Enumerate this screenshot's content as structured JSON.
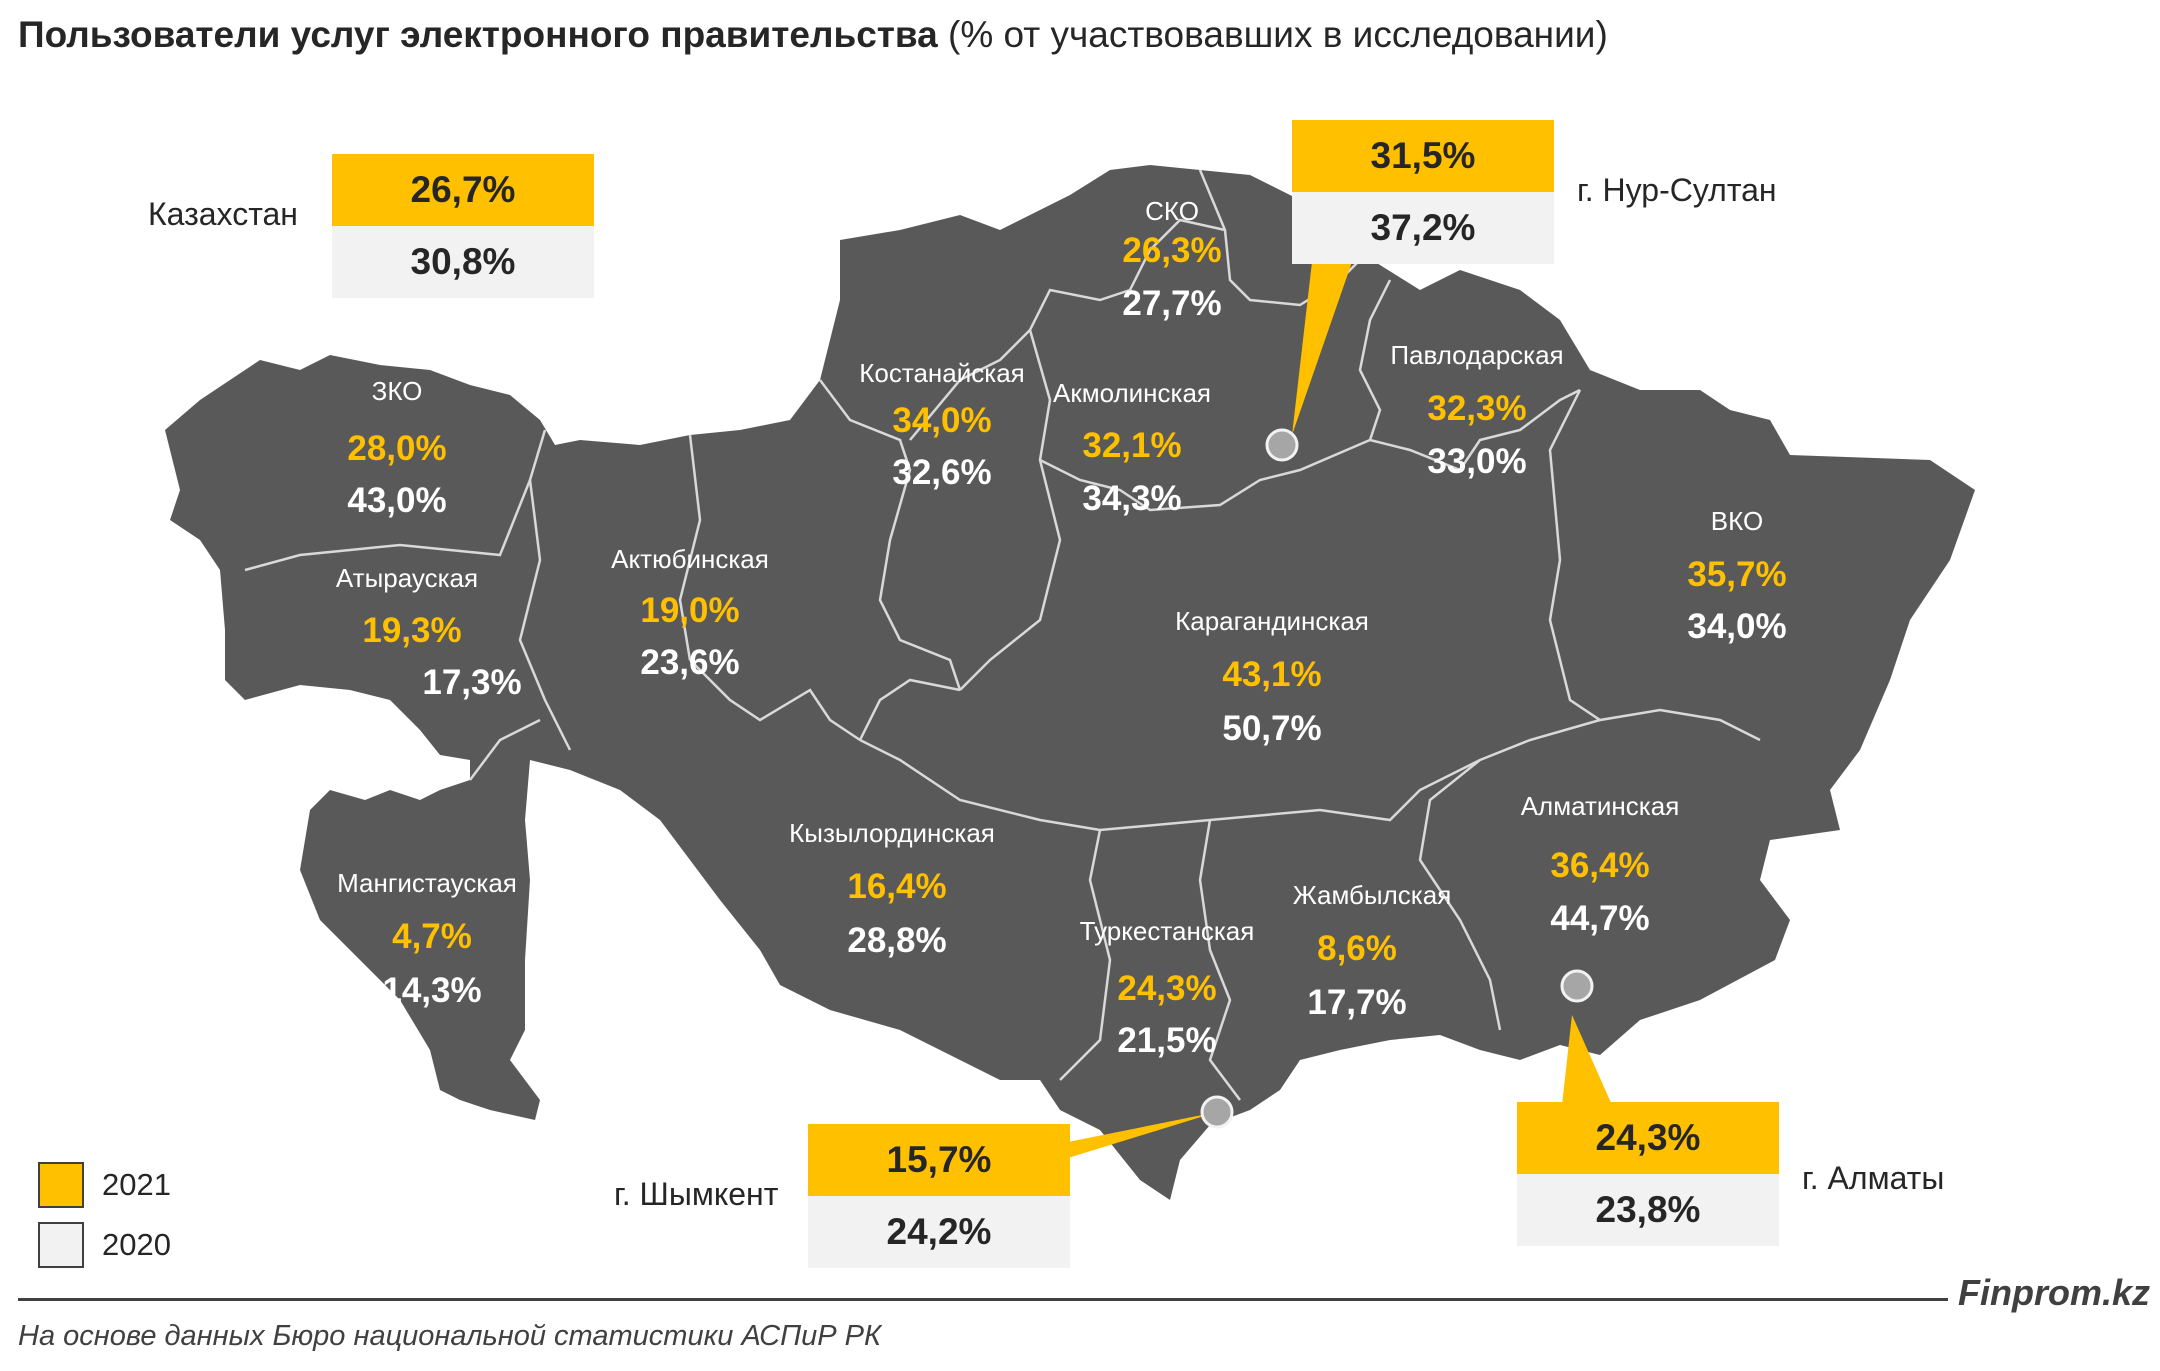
{
  "title": {
    "bold": "Пользователи услуг электронного правительства",
    "normal": "(% от участвовавших в исследовании)"
  },
  "colors": {
    "y2021": "#FFC000",
    "y2020": "#F2F2F2",
    "map": "#595959",
    "border": "#D9D9D9"
  },
  "national": {
    "label": "Казахстан",
    "v2021": "26,7%",
    "v2020": "30,8%"
  },
  "cities": {
    "nur_sultan": {
      "label": "г. Нур-Султан",
      "v2021": "31,5%",
      "v2020": "37,2%"
    },
    "shymkent": {
      "label": "г. Шымкент",
      "v2021": "15,7%",
      "v2020": "24,2%"
    },
    "almaty": {
      "label": "г. Алматы",
      "v2021": "24,3%",
      "v2020": "23,8%"
    }
  },
  "regions": [
    {
      "name": "ЗКО",
      "v2021": "28,0%",
      "v2020": "43,0%"
    },
    {
      "name": "Атырауская",
      "v2021": "19,3%",
      "v2020": "17,3%"
    },
    {
      "name": "Мангистауская",
      "v2021": "4,7%",
      "v2020": "14,3%"
    },
    {
      "name": "Актюбинская",
      "v2021": "19,0%",
      "v2020": "23,6%"
    },
    {
      "name": "Костанайская",
      "v2021": "34,0%",
      "v2020": "32,6%"
    },
    {
      "name": "СКО",
      "v2021": "26,3%",
      "v2020": "27,7%"
    },
    {
      "name": "Акмолинская",
      "v2021": "32,1%",
      "v2020": "34,3%"
    },
    {
      "name": "Павлодарская",
      "v2021": "32,3%",
      "v2020": "33,0%"
    },
    {
      "name": "ВКО",
      "v2021": "35,7%",
      "v2020": "34,0%"
    },
    {
      "name": "Карагандинская",
      "v2021": "43,1%",
      "v2020": "50,7%"
    },
    {
      "name": "Кызылординская",
      "v2021": "16,4%",
      "v2020": "28,8%"
    },
    {
      "name": "Туркестанская",
      "v2021": "24,3%",
      "v2020": "21,5%"
    },
    {
      "name": "Жамбылская",
      "v2021": "8,6%",
      "v2020": "17,7%"
    },
    {
      "name": "Алматинская",
      "v2021": "36,4%",
      "v2020": "44,7%"
    }
  ],
  "legend": {
    "y2021": "2021",
    "y2020": "2020"
  },
  "brand": "Finprom.kz",
  "source": "На основе данных Бюро национальной статистики АСПиР РК"
}
